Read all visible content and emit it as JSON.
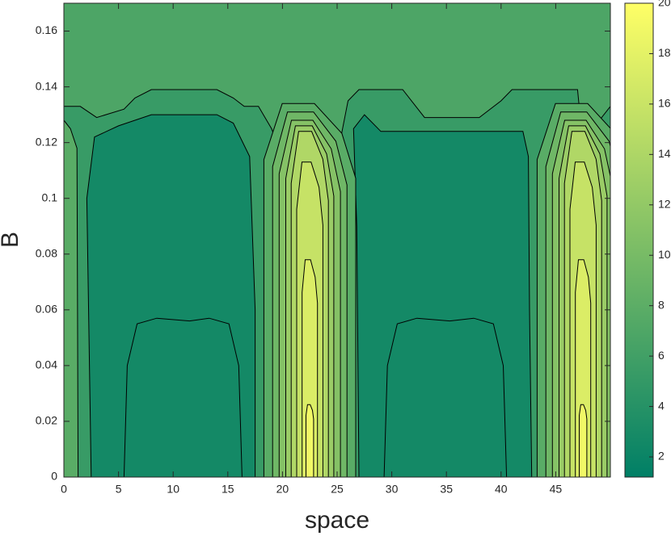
{
  "chart_data": {
    "type": "contour",
    "xlabel": "space",
    "ylabel": "B",
    "xlim": [
      0,
      50
    ],
    "xticks": [
      0,
      5,
      10,
      15,
      20,
      25,
      30,
      35,
      40,
      45
    ],
    "ylim": [
      0,
      0.17
    ],
    "yticks": [
      0,
      0.02,
      0.04,
      0.06,
      0.08,
      0.1,
      0.12,
      0.14,
      0.16
    ],
    "clim": [
      1.2,
      20
    ],
    "cticks": [
      2,
      4,
      6,
      8,
      10,
      12,
      14,
      16,
      18,
      20
    ],
    "colormap": [
      "#007f66",
      "#ffff66"
    ]
  }
}
